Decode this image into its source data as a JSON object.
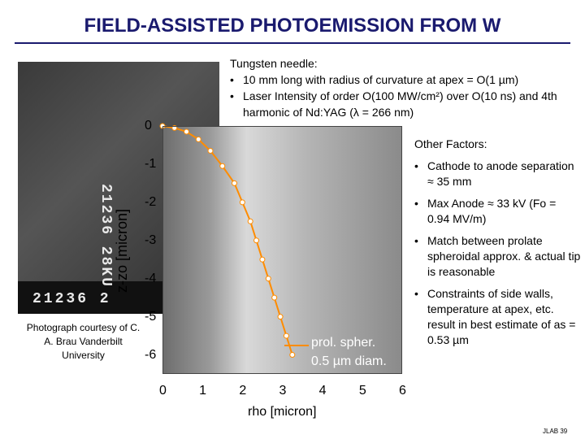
{
  "title": "FIELD-ASSISTED PHOTOEMISSION FROM W",
  "photo": {
    "code_vertical": "21236 28KU  ",
    "code_horizontal": "21236 2"
  },
  "top_block": {
    "heading": "Tungsten needle:",
    "bullets": [
      "10 mm long with radius of curvature at apex = O(1 µm)",
      "Laser Intensity of order O(100 MW/cm²) over O(10 ns) and 4th harmonic of Nd:YAG (λ = 266 nm)"
    ]
  },
  "right_block": {
    "heading": "Other Factors:",
    "bullets": [
      "Cathode to anode separation ≈ 35 mm",
      "Max Anode ≈ 33 kV (Fo = 0.94 MV/m)",
      "Match between prolate spheroidal approx. & actual tip is reasonable",
      "Constraints of side walls, temperature at apex, etc. result in best estimate of as = 0.53 µm"
    ]
  },
  "caption": "Photograph courtesy of C. A. Brau Vanderbilt University",
  "chart_data": {
    "type": "line",
    "xlabel": "rho [micron]",
    "ylabel": "z-zo [micron]",
    "x_ticks": [
      0,
      1,
      2,
      3,
      4,
      5,
      6
    ],
    "y_ticks": [
      0,
      -1,
      -2,
      -3,
      -4,
      -5,
      -6
    ],
    "legend": [
      "prol. spher.",
      "0.5 µm diam."
    ],
    "curve": [
      {
        "x": 0,
        "y": 0
      },
      {
        "x": 0.3,
        "y": -0.05
      },
      {
        "x": 0.6,
        "y": -0.15
      },
      {
        "x": 0.9,
        "y": -0.35
      },
      {
        "x": 1.2,
        "y": -0.65
      },
      {
        "x": 1.5,
        "y": -1.05
      },
      {
        "x": 1.8,
        "y": -1.5
      },
      {
        "x": 2.0,
        "y": -2.0
      },
      {
        "x": 2.2,
        "y": -2.5
      },
      {
        "x": 2.35,
        "y": -3.0
      },
      {
        "x": 2.5,
        "y": -3.5
      },
      {
        "x": 2.65,
        "y": -4.0
      },
      {
        "x": 2.8,
        "y": -4.5
      },
      {
        "x": 2.95,
        "y": -5.0
      },
      {
        "x": 3.1,
        "y": -5.5
      },
      {
        "x": 3.25,
        "y": -6.0
      }
    ],
    "xlim": [
      0,
      6
    ],
    "ylim": [
      -6.5,
      0
    ],
    "colors": {
      "line": "#ff8c00",
      "marker": "#ffffff"
    }
  },
  "footer": "JLAB 39"
}
